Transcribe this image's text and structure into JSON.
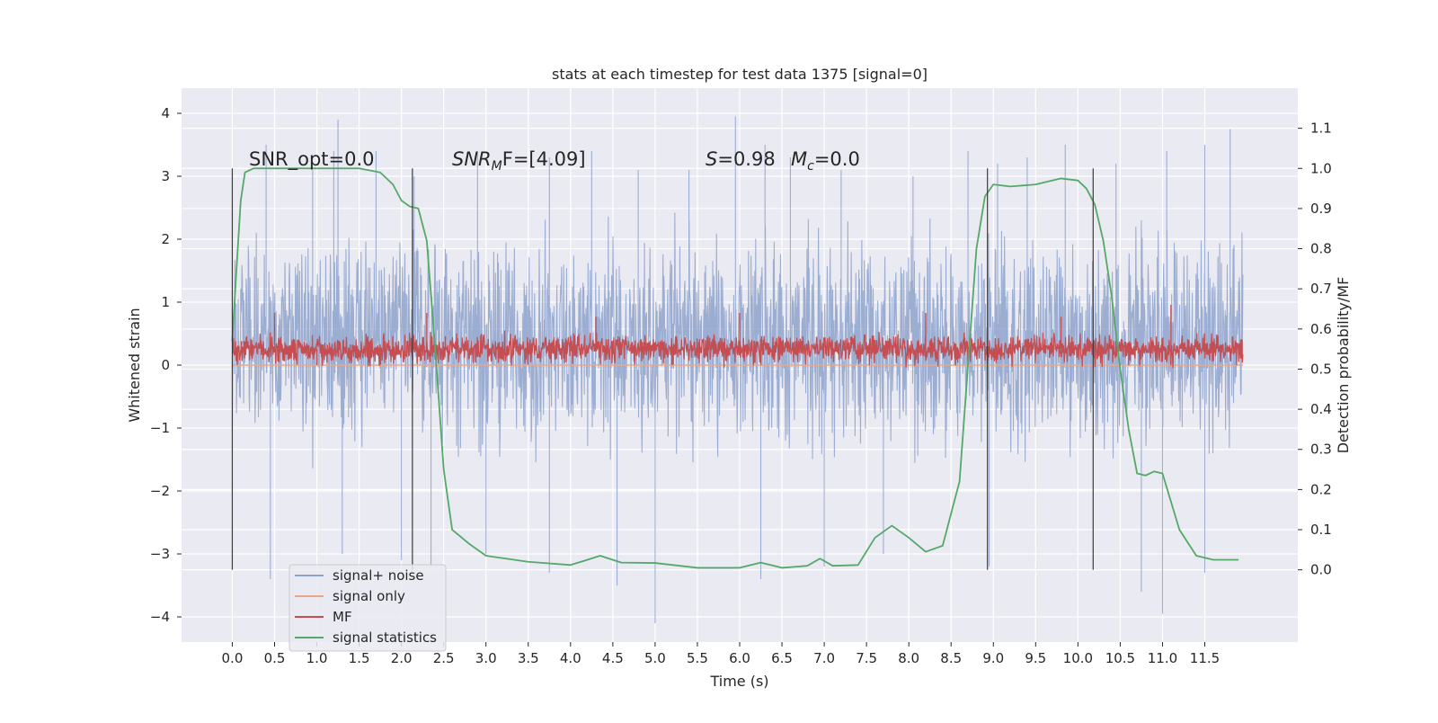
{
  "chart_data": {
    "type": "line",
    "title": "stats at each timestep for test data 1375 [signal=0]",
    "xlabel": "Time (s)",
    "ylabel": "Whitened strain",
    "y2label": "Detection probability/MF",
    "xlim": [
      -0.6,
      12.6
    ],
    "ylim": [
      -4.4,
      4.4
    ],
    "y2lim": [
      -0.18,
      1.2
    ],
    "grid": true,
    "background": "#eaeaf2",
    "x_ticks": [
      0.0,
      0.5,
      1.0,
      1.5,
      2.0,
      2.5,
      3.0,
      3.5,
      4.0,
      4.5,
      5.0,
      5.5,
      6.0,
      6.5,
      7.0,
      7.5,
      8.0,
      8.5,
      9.0,
      9.5,
      10.0,
      10.5,
      11.0,
      11.5
    ],
    "x_tick_labels": [
      "0.0",
      "0.5",
      "1.0",
      "1.5",
      "2.0",
      "2.5",
      "3.0",
      "3.5",
      "4.0",
      "4.5",
      "5.0",
      "5.5",
      "6.0",
      "6.5",
      "7.0",
      "7.5",
      "8.0",
      "8.5",
      "9.0",
      "9.5",
      "10.0",
      "10.5",
      "11.0",
      "11.5"
    ],
    "y_ticks": [
      4,
      3,
      2,
      1,
      0,
      -1,
      -2,
      -3,
      -4
    ],
    "y_tick_labels": [
      "4",
      "3",
      "2",
      "1",
      "0",
      "−1",
      "−2",
      "−3",
      "−4"
    ],
    "y2_ticks": [
      1.1,
      1.0,
      0.9,
      0.8,
      0.7,
      0.6,
      0.5,
      0.4,
      0.3,
      0.2,
      0.1,
      0.0
    ],
    "y2_tick_labels": [
      "1.1",
      "1.0",
      "0.9",
      "0.8",
      "0.7",
      "0.6",
      "0.5",
      "0.4",
      "0.3",
      "0.2",
      "0.1",
      "0.0"
    ],
    "vertical_markers": [
      0.0,
      2.13,
      8.93,
      10.18
    ],
    "annotations": {
      "snr_opt": "SNR_opt=0.0",
      "snr_mf_italic": "SNR",
      "snr_mf_sub": "M",
      "snr_mf_rest": "F=[4.09]",
      "s_italic": "S",
      "s_rest": "=0.98",
      "mc_italic": "M",
      "mc_sub": "c",
      "mc_rest": "=0.0"
    },
    "legend": {
      "position": "lower-left",
      "entries": [
        "signal+ noise",
        "signal only",
        "MF",
        "signal statistics"
      ]
    },
    "series": [
      {
        "name": "signal+ noise",
        "axis": "left",
        "color": "#8ea2cc",
        "style": "noise-band",
        "x_range": [
          0.0,
          11.95
        ],
        "typical_range": [
          -1.5,
          2.2
        ],
        "peaks_up": [
          [
            0.4,
            3.5
          ],
          [
            0.95,
            3.1
          ],
          [
            1.2,
            3.4
          ],
          [
            1.25,
            3.9
          ],
          [
            1.7,
            3.4
          ],
          [
            2.15,
            3.0
          ],
          [
            2.9,
            3.4
          ],
          [
            3.75,
            3.3
          ],
          [
            4.25,
            3.4
          ],
          [
            4.8,
            3.1
          ],
          [
            5.4,
            3.1
          ],
          [
            5.95,
            3.95
          ],
          [
            6.3,
            3.5
          ],
          [
            6.6,
            3.3
          ],
          [
            7.2,
            3.1
          ],
          [
            8.05,
            3.0
          ],
          [
            8.7,
            3.4
          ],
          [
            9.05,
            3.2
          ],
          [
            9.4,
            3.3
          ],
          [
            9.85,
            3.5
          ],
          [
            10.45,
            3.2
          ],
          [
            11.05,
            3.4
          ],
          [
            11.5,
            3.5
          ],
          [
            11.8,
            3.75
          ]
        ],
        "peaks_down": [
          [
            0.45,
            -3.4
          ],
          [
            1.3,
            -3.0
          ],
          [
            2.0,
            -3.1
          ],
          [
            2.35,
            -3.2
          ],
          [
            3.0,
            -3.0
          ],
          [
            3.75,
            -3.3
          ],
          [
            4.55,
            -3.5
          ],
          [
            5.0,
            -4.1
          ],
          [
            6.25,
            -3.4
          ],
          [
            7.0,
            -3.2
          ],
          [
            7.7,
            -3.0
          ],
          [
            8.95,
            -3.2
          ],
          [
            10.75,
            -3.6
          ],
          [
            11.0,
            -3.95
          ],
          [
            11.5,
            -3.3
          ]
        ]
      },
      {
        "name": "signal only",
        "axis": "left",
        "color": "#e8a888",
        "style": "line",
        "x": [
          0.0,
          11.95
        ],
        "y": [
          0.0,
          0.0
        ]
      },
      {
        "name": "MF",
        "axis": "right",
        "color": "#c44e52",
        "style": "noise-band",
        "x_range": [
          0.0,
          11.95
        ],
        "typical_range": [
          0.51,
          0.59
        ],
        "peaks_up": [
          [
            0.5,
            0.64
          ],
          [
            2.3,
            0.64
          ],
          [
            4.3,
            0.63
          ],
          [
            6.0,
            0.64
          ],
          [
            8.2,
            0.64
          ],
          [
            9.8,
            0.63
          ],
          [
            11.1,
            0.66
          ]
        ],
        "peaks_down": [
          [
            1.0,
            0.51
          ],
          [
            5.2,
            0.51
          ],
          [
            10.6,
            0.51
          ]
        ]
      },
      {
        "name": "signal statistics",
        "axis": "right",
        "color": "#55a868",
        "style": "line",
        "x": [
          0.0,
          0.05,
          0.1,
          0.15,
          0.25,
          0.5,
          1.0,
          1.5,
          1.75,
          1.9,
          2.0,
          2.1,
          2.2,
          2.3,
          2.4,
          2.5,
          2.6,
          2.8,
          3.0,
          3.5,
          4.0,
          4.2,
          4.35,
          4.6,
          5.0,
          5.5,
          6.0,
          6.25,
          6.5,
          6.8,
          6.95,
          7.1,
          7.4,
          7.6,
          7.8,
          8.0,
          8.2,
          8.4,
          8.6,
          8.8,
          8.9,
          9.0,
          9.2,
          9.5,
          9.8,
          10.0,
          10.1,
          10.2,
          10.3,
          10.4,
          10.5,
          10.6,
          10.7,
          10.8,
          10.9,
          11.0,
          11.1,
          11.2,
          11.4,
          11.6,
          11.8,
          11.9
        ],
        "y": [
          0.57,
          0.75,
          0.92,
          0.99,
          1.0,
          1.0,
          1.0,
          1.0,
          0.99,
          0.96,
          0.92,
          0.905,
          0.9,
          0.82,
          0.55,
          0.25,
          0.1,
          0.065,
          0.035,
          0.02,
          0.012,
          0.025,
          0.035,
          0.018,
          0.017,
          0.005,
          0.005,
          0.018,
          0.005,
          0.01,
          0.028,
          0.01,
          0.012,
          0.08,
          0.11,
          0.08,
          0.045,
          0.06,
          0.22,
          0.8,
          0.93,
          0.96,
          0.955,
          0.96,
          0.975,
          0.97,
          0.95,
          0.91,
          0.82,
          0.68,
          0.5,
          0.35,
          0.24,
          0.235,
          0.245,
          0.24,
          0.17,
          0.1,
          0.035,
          0.025,
          0.025,
          0.025
        ]
      }
    ]
  }
}
